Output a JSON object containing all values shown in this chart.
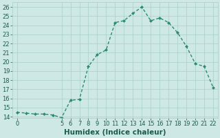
{
  "x": [
    0,
    1,
    2,
    3,
    4,
    5,
    6,
    7,
    8,
    9,
    10,
    11,
    12,
    13,
    14,
    15,
    16,
    17,
    18,
    19,
    20,
    21,
    22
  ],
  "y": [
    14.5,
    14.4,
    14.3,
    14.3,
    14.2,
    13.9,
    15.8,
    15.9,
    19.5,
    20.8,
    21.3,
    24.3,
    24.5,
    25.3,
    26.0,
    24.5,
    24.8,
    24.3,
    23.2,
    21.7,
    19.8,
    19.5,
    17.2
  ],
  "line_color": "#2e8b6e",
  "marker": "D",
  "marker_size": 2.0,
  "bg_color": "#cde8e5",
  "grid_color": "#aacfcc",
  "xlabel": "Humidex (Indice chaleur)",
  "ylim": [
    13.9,
    26.5
  ],
  "xlim": [
    -0.5,
    22.5
  ],
  "yticks": [
    14,
    15,
    16,
    17,
    18,
    19,
    20,
    21,
    22,
    23,
    24,
    25,
    26
  ],
  "xticks": [
    0,
    5,
    6,
    7,
    8,
    9,
    10,
    11,
    12,
    13,
    14,
    15,
    16,
    17,
    18,
    19,
    20,
    21,
    22
  ],
  "tick_color": "#1a5c4a",
  "tick_fontsize": 6.0,
  "xlabel_fontsize": 7.5,
  "linewidth": 1.0
}
